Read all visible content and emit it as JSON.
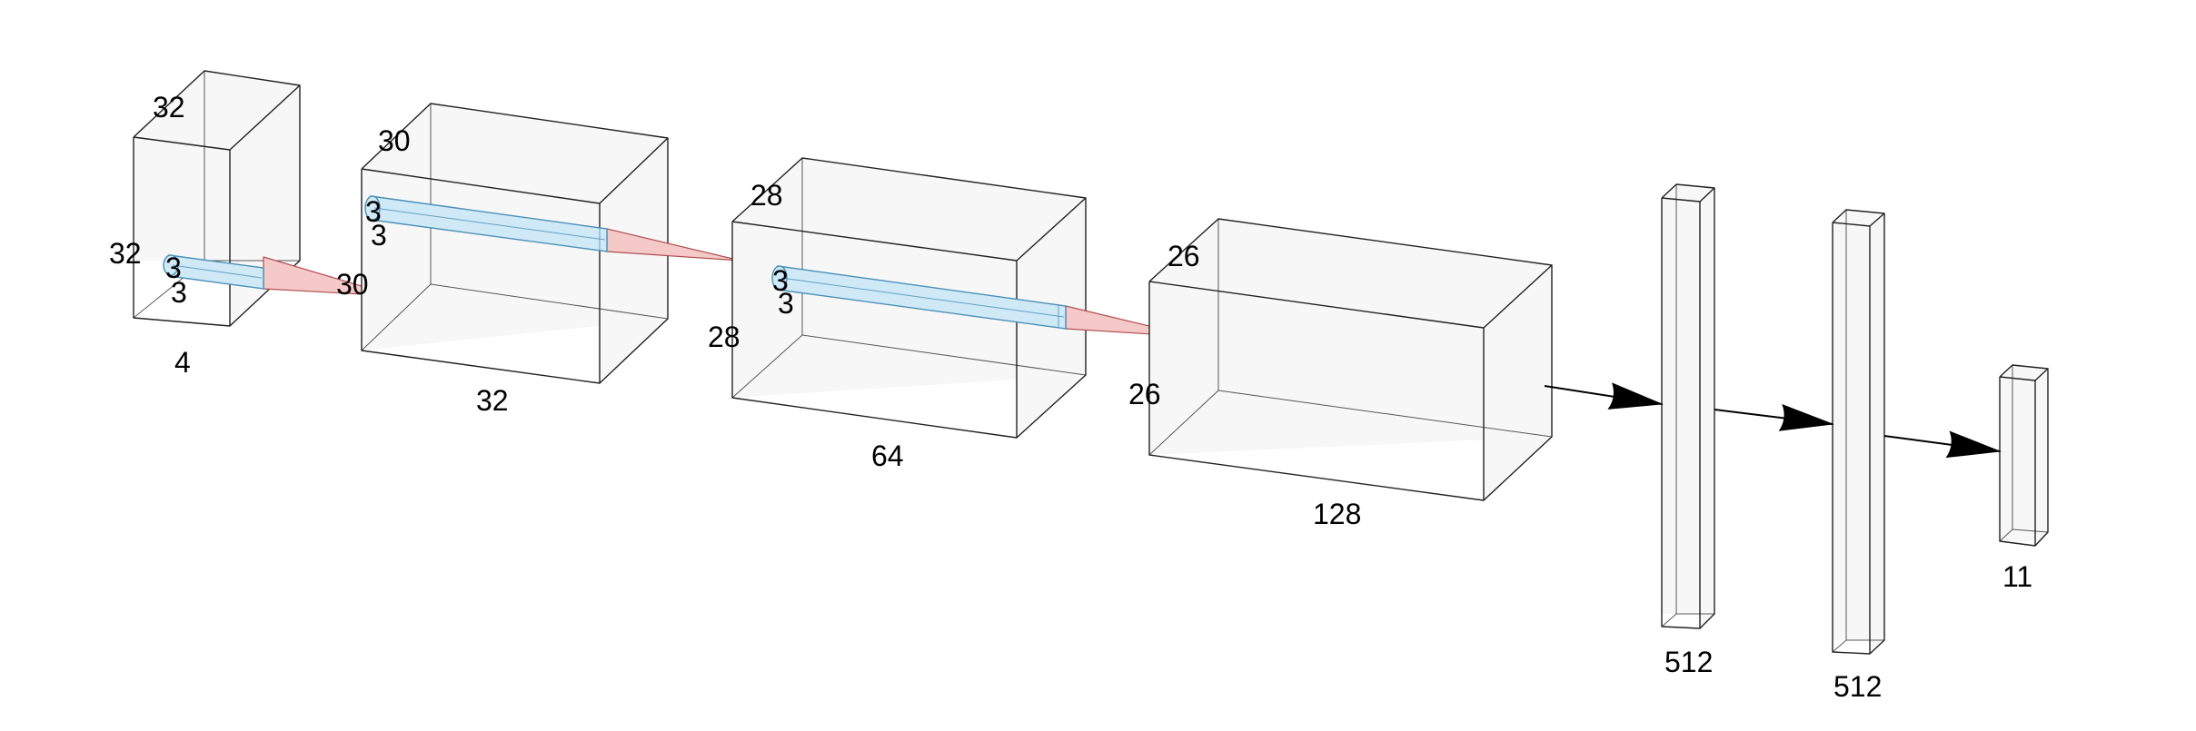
{
  "colors": {
    "box_fill": "#f7f7f7",
    "box_edge": "#222222",
    "kernel_fill": "#cfe9f7",
    "kernel_edge": "#4a90b8",
    "cone_fill": "#f6c9c9",
    "cone_edge": "#b05050",
    "arrow": "#000000"
  },
  "layers": [
    {
      "id": "input",
      "height_label": "32",
      "width_label": "32",
      "depth_label": "4",
      "kernel_h": "3",
      "kernel_w": "3"
    },
    {
      "id": "conv1",
      "height_label": "30",
      "width_label": "30",
      "depth_label": "32",
      "kernel_h": "3",
      "kernel_w": "3"
    },
    {
      "id": "conv2",
      "height_label": "28",
      "width_label": "28",
      "depth_label": "64",
      "kernel_h": "3",
      "kernel_w": "3"
    },
    {
      "id": "conv3",
      "height_label": "26",
      "width_label": "26",
      "depth_label": "128"
    }
  ],
  "dense": [
    {
      "id": "dense1",
      "label": "512"
    },
    {
      "id": "dense2",
      "label": "512"
    },
    {
      "id": "output",
      "label": "11"
    }
  ]
}
